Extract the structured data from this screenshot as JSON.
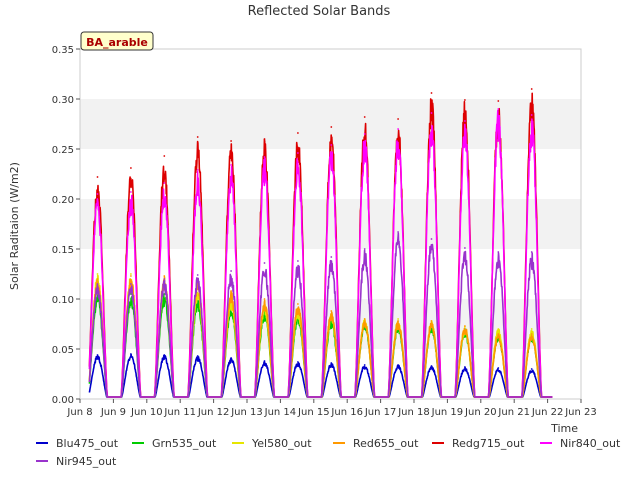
{
  "chart_data": {
    "type": "line",
    "title": "Reflected Solar Bands",
    "site_label": "BA_arable",
    "xlabel": "Time",
    "ylabel": "Solar Raditaion (W/m2)",
    "xlim": [
      8,
      23
    ],
    "ylim": [
      0,
      0.35
    ],
    "x_ticks": [
      8,
      9,
      10,
      11,
      12,
      13,
      14,
      15,
      16,
      17,
      18,
      19,
      20,
      21,
      22,
      23
    ],
    "x_tick_labels": [
      "Jun 8",
      "Jun 9",
      "Jun 10",
      "Jun 11",
      "Jun 12",
      "Jun 13",
      "Jun 14",
      "Jun 15",
      "Jun 16",
      "Jun 17",
      "Jun 18",
      "Jun 19",
      "Jun 20",
      "Jun 21",
      "Jun 22",
      "Jun 23"
    ],
    "y_ticks": [
      0.0,
      0.05,
      0.1,
      0.15,
      0.2,
      0.25,
      0.3,
      0.35
    ],
    "y_tick_labels": [
      "0.00",
      "0.05",
      "0.10",
      "0.15",
      "0.20",
      "0.25",
      "0.30",
      "0.35"
    ],
    "grid": "horizontal bands",
    "legend_position": "bottom",
    "days": [
      8.3,
      9.3,
      10.3,
      11.3,
      12.3,
      13.3,
      14.3,
      15.3,
      16.3,
      17.3,
      18.3,
      19.3,
      20.3,
      21.3
    ],
    "series": [
      {
        "name": "Blu475_out",
        "color": "#0000cc",
        "daily_peaks": [
          0.044,
          0.045,
          0.044,
          0.043,
          0.041,
          0.038,
          0.037,
          0.036,
          0.034,
          0.034,
          0.033,
          0.032,
          0.031,
          0.03
        ]
      },
      {
        "name": "Grn535_out",
        "color": "#00cc00",
        "daily_peaks": [
          0.105,
          0.105,
          0.105,
          0.1,
          0.093,
          0.088,
          0.085,
          0.08,
          0.078,
          0.075,
          0.075,
          0.07,
          0.065,
          0.065
        ]
      },
      {
        "name": "Yel580_out",
        "color": "#e6e600",
        "daily_peaks": [
          0.125,
          0.125,
          0.12,
          0.11,
          0.1,
          0.095,
          0.09,
          0.085,
          0.08,
          0.08,
          0.078,
          0.072,
          0.07,
          0.07
        ]
      },
      {
        "name": "Red655_out",
        "color": "#ff9900",
        "daily_peaks": [
          0.12,
          0.123,
          0.123,
          0.12,
          0.108,
          0.1,
          0.095,
          0.088,
          0.08,
          0.078,
          0.078,
          0.073,
          0.065,
          0.065
        ]
      },
      {
        "name": "Redg715_out",
        "color": "#dd0000",
        "daily_peaks": [
          0.222,
          0.231,
          0.243,
          0.262,
          0.258,
          0.26,
          0.266,
          0.272,
          0.282,
          0.28,
          0.306,
          0.299,
          0.298,
          0.31
        ]
      },
      {
        "name": "Nir840_out",
        "color": "#ff00ff",
        "daily_peaks": [
          0.205,
          0.207,
          0.216,
          0.229,
          0.234,
          0.242,
          0.246,
          0.254,
          0.265,
          0.27,
          0.286,
          0.278,
          0.29,
          0.284
        ]
      },
      {
        "name": "Nir945_out",
        "color": "#9933cc",
        "daily_peaks": [
          0.115,
          0.115,
          0.12,
          0.124,
          0.128,
          0.136,
          0.138,
          0.142,
          0.15,
          0.167,
          0.16,
          0.151,
          0.147,
          0.147
        ]
      }
    ]
  }
}
